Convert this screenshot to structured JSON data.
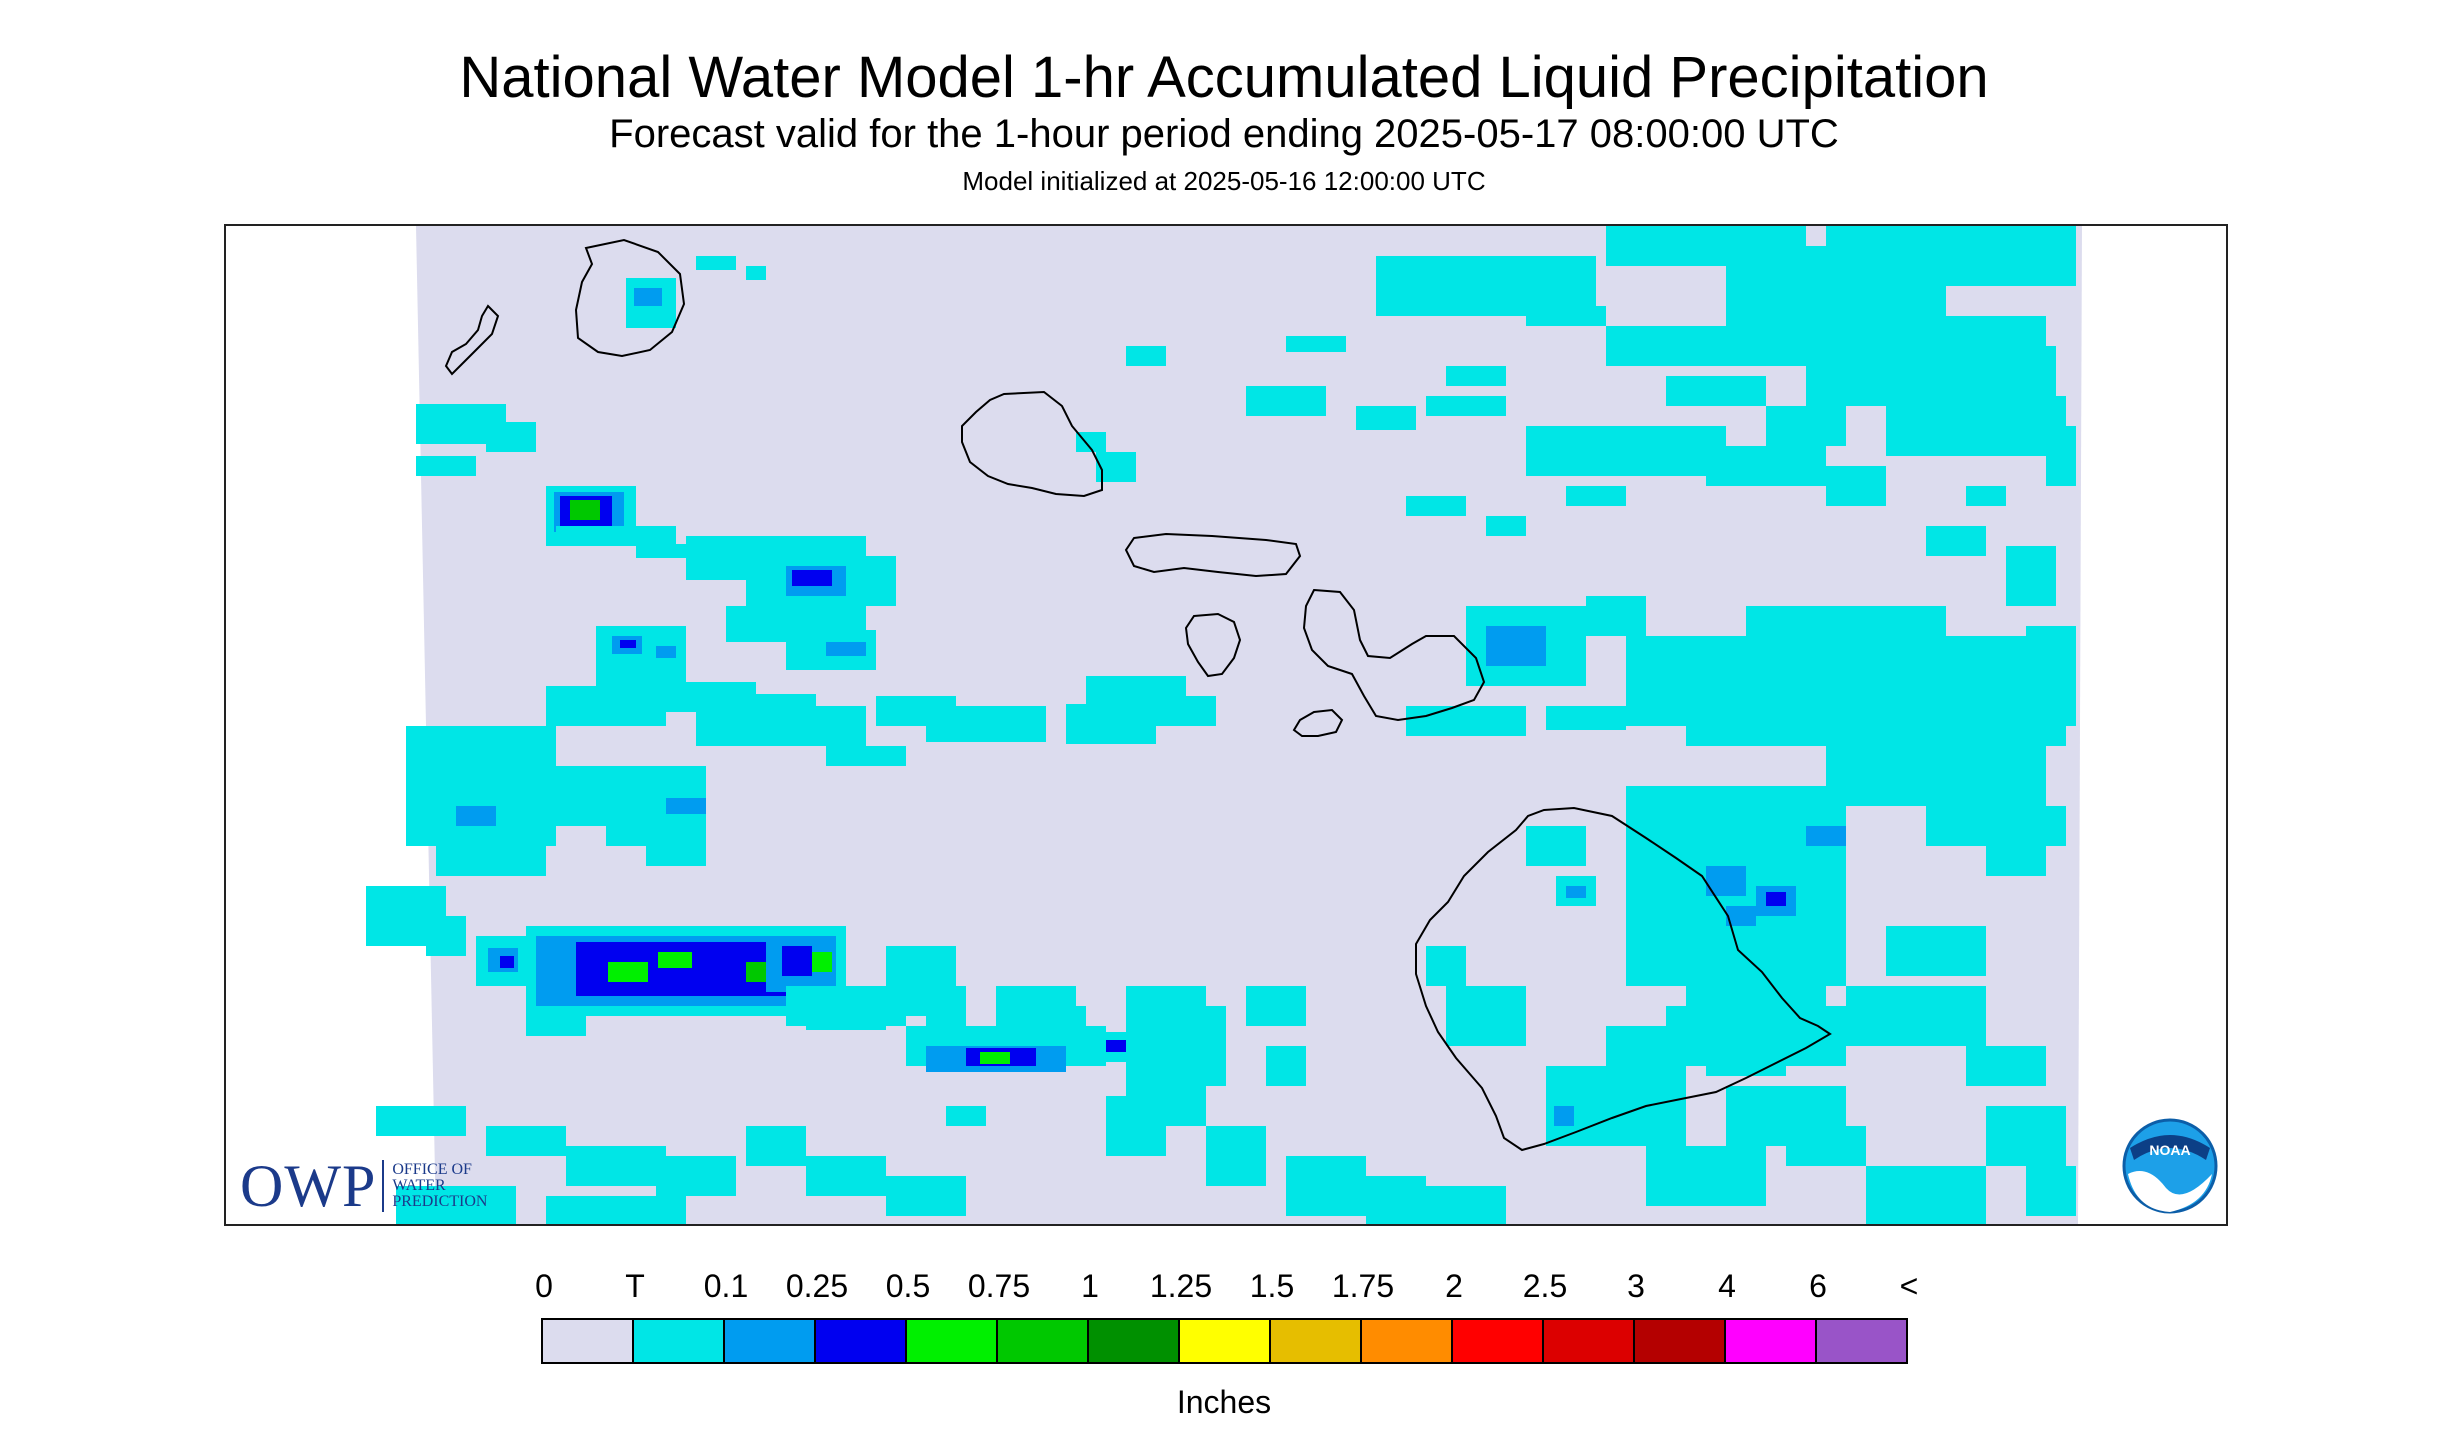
{
  "header": {
    "title": "National Water Model 1-hr Accumulated Liquid Precipitation",
    "subtitle": "Forecast valid for the 1-hour period ending 2025-05-17 08:00:00 UTC",
    "init": "Model initialized at 2025-05-16 12:00:00 UTC"
  },
  "map": {
    "region": "Hawaiian Islands",
    "background_color": "#dcdcee",
    "coastline_color": "#000000",
    "islands": [
      "Niihau",
      "Kauai",
      "Oahu",
      "Molokai",
      "Lanai",
      "Maui",
      "Kahoolawe",
      "Hawaii"
    ]
  },
  "legend": {
    "ticks": [
      "0",
      "T",
      "0.1",
      "0.25",
      "0.5",
      "0.75",
      "1",
      "1.25",
      "1.5",
      "1.75",
      "2",
      "2.5",
      "3",
      "4",
      "6",
      "<"
    ],
    "colors": [
      "#dcdcee",
      "#00e6e6",
      "#009cf0",
      "#0000f0",
      "#00f000",
      "#00c800",
      "#009000",
      "#ffff00",
      "#e6be00",
      "#ff8c00",
      "#ff0000",
      "#dc0000",
      "#b40000",
      "#ff00ff",
      "#9954c8"
    ],
    "units": "Inches"
  },
  "logos": {
    "owp_mark": "OWP",
    "owp_lines": [
      "Office of",
      "Water",
      "Prediction"
    ],
    "noaa_text": "NOAA",
    "owp_icon": "owp-logo-icon",
    "noaa_icon": "noaa-logo-icon"
  }
}
